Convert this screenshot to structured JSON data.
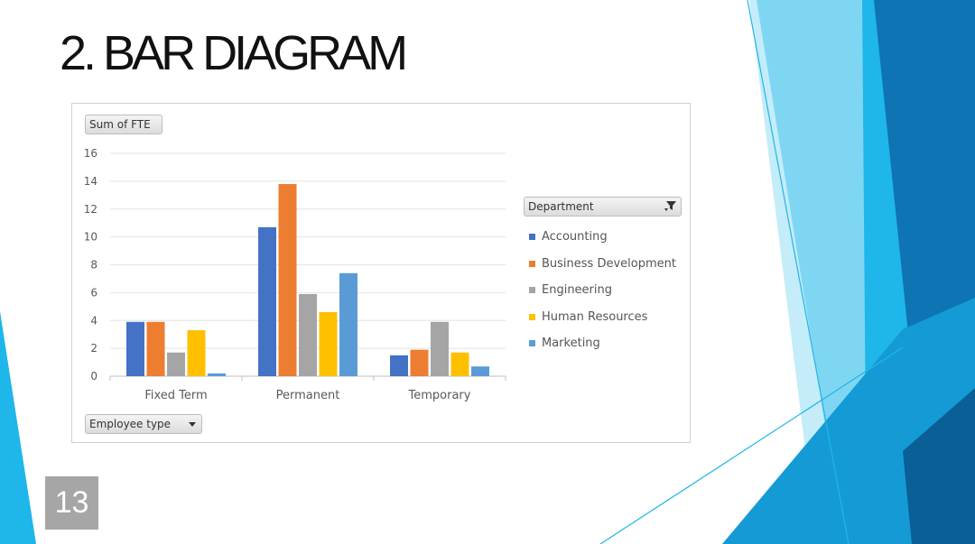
{
  "slide": {
    "title": "2. BAR DIAGRAM",
    "page_number": "13"
  },
  "pivot": {
    "values_button": "Sum of FTE",
    "axis_button": "Employee type",
    "legend_button": "Department"
  },
  "colors": {
    "accent_dark": "#0e74b3",
    "accent_mid": "#1fb6ea",
    "accent_light": "#7fd6f2",
    "accent_pale": "#c4ecf9"
  },
  "chart_data": {
    "type": "bar",
    "categories": [
      "Fixed Term",
      "Permanent",
      "Temporary"
    ],
    "series": [
      {
        "name": "Accounting",
        "color": "#4472c4",
        "values": [
          3.9,
          10.7,
          1.5
        ]
      },
      {
        "name": "Business Development",
        "color": "#ed7d31",
        "values": [
          3.9,
          13.8,
          1.9
        ]
      },
      {
        "name": "Engineering",
        "color": "#a5a5a5",
        "values": [
          1.7,
          5.9,
          3.9
        ]
      },
      {
        "name": "Human Resources",
        "color": "#ffc000",
        "values": [
          3.3,
          4.6,
          1.7
        ]
      },
      {
        "name": "Marketing",
        "color": "#5b9bd5",
        "values": [
          0.2,
          7.4,
          0.7
        ]
      }
    ],
    "ylim": [
      0,
      16
    ],
    "yticks": [
      0,
      2,
      4,
      6,
      8,
      10,
      12,
      14,
      16
    ],
    "grid": true,
    "legend_position": "right"
  }
}
